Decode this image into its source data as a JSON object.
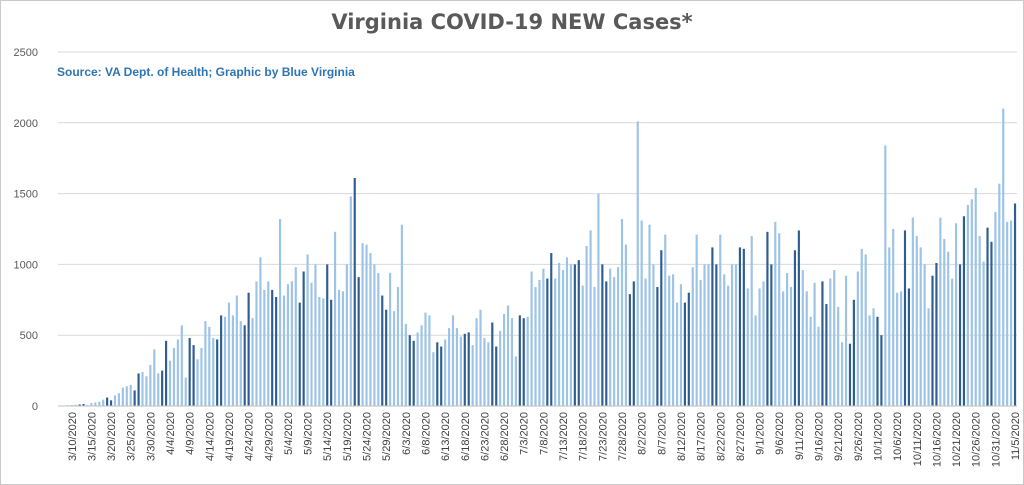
{
  "chart_data": {
    "type": "bar",
    "title": "Virginia COVID-19 NEW Cases*",
    "annotation": "Source: VA Dept. of Health; Graphic by Blue Virginia",
    "xlabel": "",
    "ylabel": "",
    "ylim": [
      0,
      2500
    ],
    "yticks": [
      0,
      500,
      1000,
      1500,
      2000,
      2500
    ],
    "grid": true,
    "legend": "none",
    "bar_colors": [
      "#2e5e91",
      "#9dc3e6"
    ],
    "gridline_color": "#d9d9d9",
    "text_color": "#595959",
    "x_start": "2020-03-07",
    "x_tick_every": 5,
    "x_tick_labels": [
      "3/10/2020",
      "3/15/2020",
      "3/20/2020",
      "3/25/2020",
      "3/30/2020",
      "4/4/2020",
      "4/9/2020",
      "4/14/2020",
      "4/19/2020",
      "4/24/2020",
      "4/29/2020",
      "5/4/2020",
      "5/9/2020",
      "5/14/2020",
      "5/19/2020",
      "5/24/2020",
      "5/29/2020",
      "6/3/2020",
      "6/8/2020",
      "6/13/2020",
      "6/18/2020",
      "6/23/2020",
      "6/28/2020",
      "7/3/2020",
      "7/8/2020",
      "7/13/2020",
      "7/18/2020",
      "7/23/2020",
      "7/28/2020",
      "8/2/2020",
      "8/7/2020",
      "8/12/2020",
      "8/17/2020",
      "8/22/2020",
      "8/27/2020",
      "9/1/2020",
      "9/6/2020",
      "9/11/2020",
      "9/16/2020",
      "9/21/2020",
      "9/26/2020",
      "10/1/2020",
      "10/6/2020",
      "10/11/2020",
      "10/16/2020",
      "10/21/2020",
      "10/26/2020",
      "10/31/2020",
      "11/5/2020",
      "11/10/2020"
    ],
    "values": [
      2,
      3,
      5,
      7,
      9,
      11,
      14,
      8,
      20,
      25,
      30,
      45,
      60,
      40,
      75,
      90,
      130,
      140,
      150,
      110,
      230,
      240,
      210,
      290,
      400,
      230,
      250,
      460,
      320,
      410,
      470,
      570,
      200,
      480,
      430,
      330,
      410,
      600,
      560,
      480,
      470,
      640,
      630,
      730,
      640,
      780,
      600,
      570,
      800,
      620,
      880,
      1050,
      820,
      880,
      820,
      770,
      1320,
      780,
      860,
      880,
      980,
      730,
      950,
      1070,
      870,
      1000,
      770,
      760,
      1000,
      750,
      1230,
      820,
      810,
      1000,
      1480,
      1610,
      910,
      1150,
      1140,
      1080,
      1000,
      940,
      780,
      680,
      940,
      670,
      840,
      1280,
      580,
      500,
      460,
      520,
      570,
      660,
      640,
      380,
      450,
      420,
      470,
      550,
      640,
      550,
      490,
      510,
      520,
      430,
      620,
      680,
      480,
      450,
      590,
      420,
      530,
      650,
      710,
      620,
      350,
      640,
      620,
      630,
      950,
      840,
      890,
      970,
      900,
      1080,
      900,
      1010,
      960,
      1050,
      1000,
      1000,
      1030,
      850,
      1130,
      1240,
      840,
      1500,
      1000,
      880,
      970,
      910,
      980,
      1320,
      1140,
      790,
      880,
      2010,
      1310,
      900,
      1280,
      1000,
      840,
      1100,
      1210,
      920,
      930,
      730,
      860,
      730,
      800,
      980,
      1210,
      890,
      1000,
      1000,
      1120,
      1000,
      1210,
      930,
      850,
      1000,
      1000,
      1120,
      1110,
      830,
      1200,
      640,
      830,
      880,
      1230,
      1000,
      1300,
      1220,
      810,
      940,
      840,
      1100,
      1240,
      960,
      810,
      630,
      870,
      560,
      880,
      720,
      900,
      960,
      700,
      450,
      920,
      440,
      750,
      950,
      1110,
      1070,
      640,
      690,
      630,
      500,
      1840,
      1120,
      1250,
      800,
      810,
      1240,
      830,
      1330,
      1200,
      1120,
      1000,
      690,
      920,
      1010,
      1330,
      1180,
      1090,
      900,
      1290,
      1000,
      1340,
      1420,
      1460,
      1540,
      1200,
      1020,
      1260,
      1160,
      1370,
      1570,
      2100,
      1300,
      1310,
      1430
    ]
  }
}
